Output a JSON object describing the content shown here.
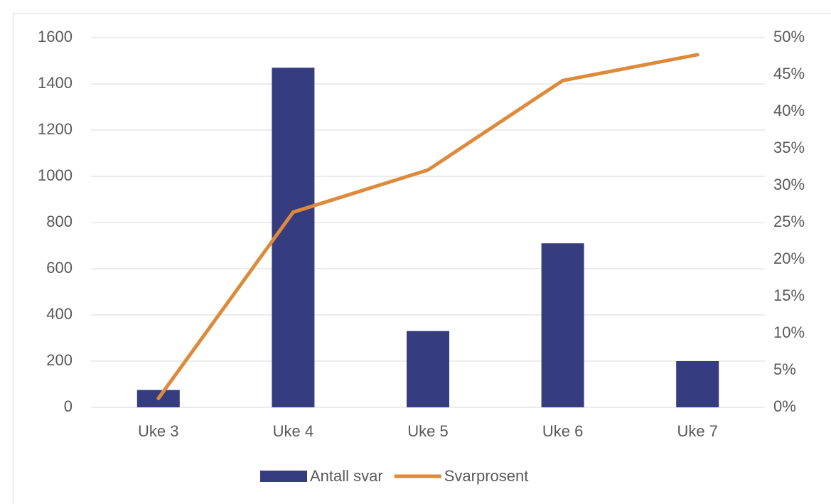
{
  "chart_data": {
    "type": "bar",
    "categories": [
      "Uke 3",
      "Uke 4",
      "Uke 5",
      "Uke 6",
      "Uke 7"
    ],
    "series": [
      {
        "name": "Antall svar",
        "color": "#363c80",
        "type": "bar",
        "values": [
          75,
          1470,
          330,
          710,
          200
        ]
      },
      {
        "name": "Svarprosent",
        "color": "#dd8a3b",
        "type": "line",
        "axis": "y2",
        "values": [
          1.2,
          26.4,
          32.1,
          44.2,
          47.7
        ]
      }
    ],
    "ylim": [
      0,
      1600
    ],
    "yticks": [
      0,
      200,
      400,
      600,
      800,
      1000,
      1200,
      1400,
      1600
    ],
    "y2lim": [
      0,
      50
    ],
    "y2ticks": [
      {
        "value": 0,
        "label": "0%"
      },
      {
        "value": 5,
        "label": "5%"
      },
      {
        "value": 10,
        "label": "10%"
      },
      {
        "value": 15,
        "label": "15%"
      },
      {
        "value": 20,
        "label": "20%"
      },
      {
        "value": 25,
        "label": "25%"
      },
      {
        "value": 30,
        "label": "30%"
      },
      {
        "value": 35,
        "label": "35%"
      },
      {
        "value": 40,
        "label": "40%"
      },
      {
        "value": 45,
        "label": "45%"
      },
      {
        "value": 50,
        "label": "50%"
      }
    ],
    "grid": true,
    "legend": "bottom"
  }
}
